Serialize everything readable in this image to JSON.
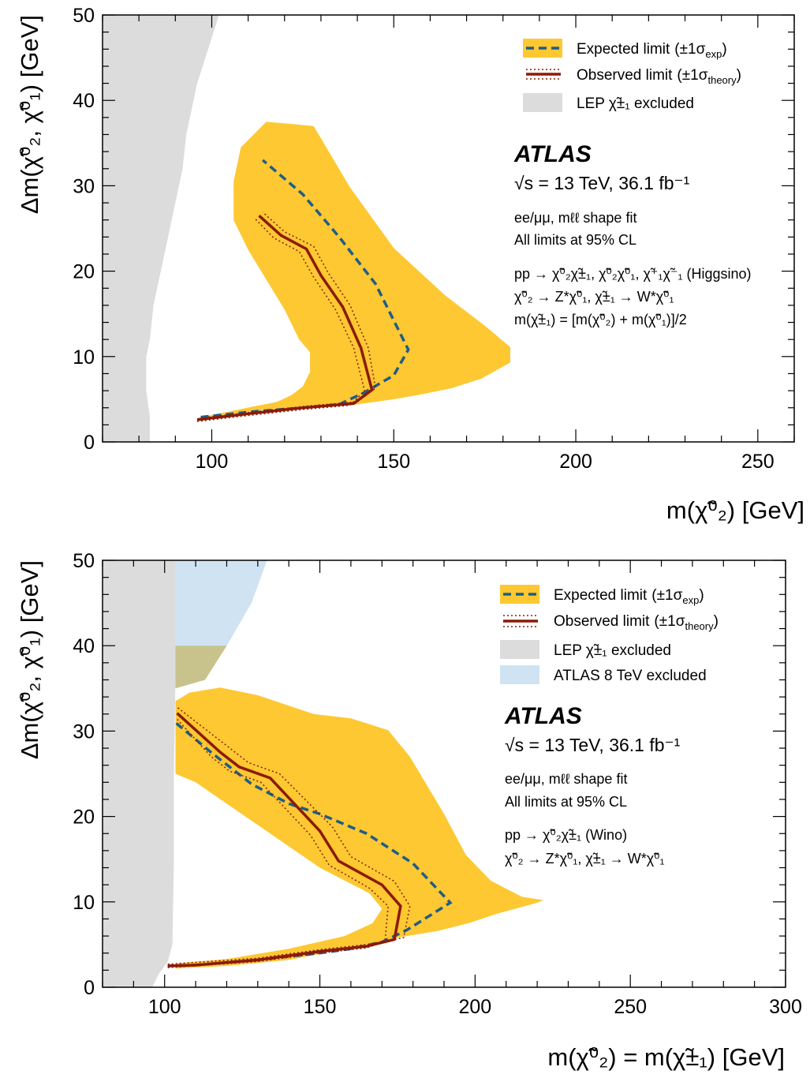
{
  "chart_data": [
    {
      "type": "area",
      "xlabel": "m(χ̃⁰₂) [GeV]",
      "ylabel": "Δm(χ̃⁰₂, χ̃⁰₁) [GeV]",
      "xlim": [
        70,
        260
      ],
      "ylim": [
        0,
        50
      ],
      "xticks": [
        100,
        150,
        200,
        250
      ],
      "yticks": [
        0,
        10,
        20,
        30,
        40,
        50
      ],
      "legend_position": "top-right",
      "legend": [
        "Expected limit (±1σexp)",
        "Observed limit (±1σtheory)",
        "LEP χ̃±₁ excluded"
      ],
      "experiment": "ATLAS",
      "energy": "√s = 13 TeV, 36.1 fb⁻¹",
      "notes": [
        "ee/μμ, mℓℓ shape fit",
        "All limits at 95% CL",
        "pp → χ̃⁰₂χ̃±₁, χ̃⁰₂χ̃⁰₁, χ̃⁺₁χ̃⁻₁ (Higgsino)",
        "χ̃⁰₂ → Z*χ̃⁰₁, χ̃±₁ → W*χ̃⁰₁",
        "m(χ̃±₁) = [m(χ̃⁰₂) + m(χ̃⁰₁)]/2"
      ],
      "lep_excluded": [
        [
          70,
          0
        ],
        [
          70,
          50
        ],
        [
          102,
          50
        ],
        [
          99,
          46
        ],
        [
          96,
          42
        ],
        [
          93,
          36
        ],
        [
          92,
          32
        ],
        [
          90,
          28
        ],
        [
          88,
          24
        ],
        [
          86,
          20
        ],
        [
          84,
          16
        ],
        [
          83,
          12
        ],
        [
          82,
          10
        ],
        [
          82,
          6
        ],
        [
          83,
          3
        ],
        [
          83,
          0
        ]
      ],
      "band_1sigma": [
        [
          96,
          2.5
        ],
        [
          104,
          3.2
        ],
        [
          115,
          3.8
        ],
        [
          128,
          4
        ],
        [
          140,
          4.4
        ],
        [
          150,
          5.0
        ],
        [
          158,
          5.6
        ],
        [
          166,
          6.3
        ],
        [
          174,
          7.4
        ],
        [
          182,
          9.3
        ],
        [
          182,
          11.1
        ],
        [
          175,
          13.6
        ],
        [
          164,
          17.2
        ],
        [
          150,
          22.7
        ],
        [
          138,
          29.8
        ],
        [
          128,
          37
        ],
        [
          115,
          37.5
        ],
        [
          108,
          34.5
        ],
        [
          106,
          30.5
        ],
        [
          106,
          26
        ],
        [
          110,
          22.5
        ],
        [
          120,
          15.5
        ],
        [
          124,
          12
        ],
        [
          127,
          10.5
        ],
        [
          127,
          8.2
        ],
        [
          125,
          6.5
        ],
        [
          122,
          5.5
        ],
        [
          118,
          4.7
        ],
        [
          112,
          4.2
        ],
        [
          104,
          3.5
        ],
        [
          96,
          2.8
        ]
      ],
      "series": [
        {
          "name": "Expected limit (±1σexp)",
          "style": "dashed",
          "points": [
            [
              97,
              2.9
            ],
            [
              110,
              3.5
            ],
            [
              125,
              4
            ],
            [
              135,
              4.4
            ],
            [
              142,
              5.8
            ],
            [
              150,
              7.8
            ],
            [
              154,
              10.8
            ],
            [
              145,
              18.5
            ],
            [
              135,
              24
            ],
            [
              125,
              29
            ],
            [
              114,
              33
            ]
          ]
        },
        {
          "name": "Observed limit (±1σtheory)",
          "style": "solid",
          "points": [
            [
              96,
              2.6
            ],
            [
              110,
              3.3
            ],
            [
              125,
              4
            ],
            [
              139,
              4.5
            ],
            [
              144,
              6.1
            ],
            [
              141,
              11
            ],
            [
              136,
              15.8
            ],
            [
              130,
              19.5
            ],
            [
              126,
              22.6
            ],
            [
              119,
              24.2
            ],
            [
              113,
              26.5
            ]
          ]
        },
        {
          "name": "theory +1σ",
          "style": "dotted",
          "points": [
            [
              96,
              2.4
            ],
            [
              110,
              3.1
            ],
            [
              125,
              3.8
            ],
            [
              138,
              4.3
            ],
            [
              142,
              6
            ],
            [
              139,
              11
            ],
            [
              134,
              15.5
            ],
            [
              128,
              19.3
            ],
            [
              124,
              22.3
            ],
            [
              117,
              23.9
            ],
            [
              112,
              26.1
            ]
          ]
        },
        {
          "name": "theory -1σ",
          "style": "dotted",
          "points": [
            [
              97,
              2.8
            ],
            [
              111,
              3.5
            ],
            [
              126,
              4.2
            ],
            [
              140,
              4.7
            ],
            [
              145,
              6.3
            ],
            [
              143,
              11
            ],
            [
              138,
              16
            ],
            [
              132,
              19.8
            ],
            [
              128,
              22.9
            ],
            [
              120,
              24.6
            ],
            [
              114,
              26.9
            ]
          ]
        }
      ],
      "colors": {
        "band": "#fdc832",
        "expected": "#1f5d86",
        "observed": "#8c1a07",
        "lep": "#dcdcdc"
      }
    },
    {
      "type": "area",
      "xlabel": "m(χ̃⁰₂) = m(χ̃±₁) [GeV]",
      "ylabel": "Δm(χ̃⁰₂, χ̃⁰₁) [GeV]",
      "xlim": [
        80,
        300
      ],
      "ylim": [
        0,
        50
      ],
      "xticks": [
        100,
        150,
        200,
        250,
        300
      ],
      "yticks": [
        0,
        10,
        20,
        30,
        40,
        50
      ],
      "legend_position": "top-right",
      "legend": [
        "Expected limit (±1σexp)",
        "Observed limit (±1σtheory)",
        "LEP χ̃±₁ excluded",
        "ATLAS 8 TeV excluded"
      ],
      "experiment": "ATLAS",
      "energy": "√s = 13 TeV, 36.1 fb⁻¹",
      "notes": [
        "ee/μμ, mℓℓ shape fit",
        "All limits at 95% CL",
        "pp → χ̃⁰₂χ̃±₁ (Wino)",
        "χ̃⁰₂ → Z*χ̃⁰₁, χ̃±₁ → W*χ̃⁰₁"
      ],
      "lep_excluded": [
        [
          80,
          0
        ],
        [
          80,
          50
        ],
        [
          103.5,
          50
        ],
        [
          103.5,
          36
        ],
        [
          103,
          25
        ],
        [
          103,
          15
        ],
        [
          102.5,
          5
        ],
        [
          101,
          3
        ],
        [
          98,
          1.5
        ],
        [
          96,
          0
        ]
      ],
      "atlas8_excluded": [
        [
          103.5,
          50
        ],
        [
          133,
          50
        ],
        [
          128,
          45
        ],
        [
          120,
          40
        ],
        [
          113,
          36
        ],
        [
          103.5,
          35
        ]
      ],
      "band_1sigma": [
        [
          103.5,
          2.2
        ],
        [
          120,
          2.5
        ],
        [
          140,
          3.2
        ],
        [
          160,
          4.6
        ],
        [
          175,
          5.8
        ],
        [
          188,
          6.6
        ],
        [
          198,
          7.5
        ],
        [
          207,
          8.6
        ],
        [
          220,
          9.9
        ],
        [
          222,
          10.2
        ],
        [
          215,
          10.6
        ],
        [
          205,
          12.5
        ],
        [
          197,
          15.5
        ],
        [
          190,
          20.3
        ],
        [
          179,
          27
        ],
        [
          172,
          30.1
        ],
        [
          160,
          31.5
        ],
        [
          148,
          32
        ],
        [
          130,
          34.2
        ],
        [
          118,
          35.1
        ],
        [
          108,
          34.5
        ],
        [
          103.5,
          33.5
        ],
        [
          103.5,
          25
        ],
        [
          110,
          24
        ],
        [
          130,
          19
        ],
        [
          150,
          14
        ],
        [
          166,
          11
        ],
        [
          170,
          9.2
        ],
        [
          167,
          7.5
        ],
        [
          158,
          6
        ],
        [
          140,
          4.5
        ],
        [
          120,
          3.3
        ],
        [
          103.5,
          2.8
        ]
      ],
      "series": [
        {
          "name": "Expected limit (±1σexp)",
          "style": "dashed",
          "points": [
            [
              101,
              2.5
            ],
            [
              110,
              2.6
            ],
            [
              130,
              3.2
            ],
            [
              150,
              4
            ],
            [
              160,
              4.5
            ],
            [
              170,
              5.3
            ],
            [
              178,
              6.7
            ],
            [
              192,
              9.9
            ],
            [
              180,
              14.5
            ],
            [
              165,
              18
            ],
            [
              150,
              20.3
            ],
            [
              140,
              21.5
            ],
            [
              128,
              23.8
            ],
            [
              115,
              27.5
            ],
            [
              103.5,
              31
            ]
          ]
        },
        {
          "name": "Observed limit (±1σtheory)",
          "style": "solid",
          "points": [
            [
              101,
              2.5
            ],
            [
              110,
              2.6
            ],
            [
              130,
              3.2
            ],
            [
              150,
              4.2
            ],
            [
              165,
              4.8
            ],
            [
              174,
              5.6
            ],
            [
              176,
              9.5
            ],
            [
              170,
              12
            ],
            [
              156,
              14.8
            ],
            [
              150,
              18.3
            ],
            [
              134,
              24.5
            ],
            [
              124,
              25.8
            ],
            [
              118,
              27.5
            ],
            [
              104,
              32.1
            ]
          ]
        },
        {
          "name": "theory +1σ",
          "style": "dotted",
          "points": [
            [
              101,
              2.3
            ],
            [
              130,
              3
            ],
            [
              150,
              4
            ],
            [
              165,
              4.6
            ],
            [
              171,
              5.4
            ],
            [
              172,
              9.5
            ],
            [
              166,
              11.6
            ],
            [
              153,
              14.3
            ],
            [
              147,
              17.8
            ],
            [
              131,
              24
            ],
            [
              121,
              25.3
            ],
            [
              115,
              27
            ],
            [
              104,
              31.4
            ]
          ]
        },
        {
          "name": "theory -1σ",
          "style": "dotted",
          "points": [
            [
              101,
              2.7
            ],
            [
              130,
              3.4
            ],
            [
              150,
              4.4
            ],
            [
              165,
              5
            ],
            [
              177,
              5.8
            ],
            [
              179,
              9.5
            ],
            [
              174,
              12.4
            ],
            [
              160,
              15.3
            ],
            [
              154,
              18.8
            ],
            [
              137,
              25
            ],
            [
              127,
              26.3
            ],
            [
              121,
              28
            ],
            [
              104,
              32.8
            ]
          ]
        }
      ],
      "colors": {
        "band": "#fdc832",
        "expected": "#1f5d86",
        "observed": "#8c1a07",
        "lep": "#dcdcdc",
        "atlas8": "#cfe3f2"
      }
    }
  ],
  "plot1": {
    "legend": {
      "expected": "Expected limit",
      "expected_paren": "(±1σ",
      "expected_sub": "exp",
      "observed": "Observed limit",
      "observed_paren": "(±1σ",
      "observed_sub": "theory",
      "lep": "LEP χ̃±₁ excluded"
    },
    "atlas": "ATLAS",
    "energy": "√s = 13 TeV, 36.1 fb⁻¹",
    "line1": "ee/μμ, mℓℓ shape fit",
    "line2": "All limits at 95% CL",
    "line3": "pp → χ̃⁰₂χ̃±₁, χ̃⁰₂χ̃⁰₁, χ̃⁺₁χ̃⁻₁ (Higgsino)",
    "line4": "χ̃⁰₂ → Z*χ̃⁰₁, χ̃±₁ → W*χ̃⁰₁",
    "line5": "m(χ̃±₁) = [m(χ̃⁰₂) + m(χ̃⁰₁)]/2",
    "xlabel": "m(χ̃⁰₂) [GeV]",
    "ylabel": "Δm(χ̃⁰₂, χ̃⁰₁) [GeV]"
  },
  "plot2": {
    "legend": {
      "expected": "Expected limit",
      "expected_paren": "(±1σ",
      "expected_sub": "exp",
      "observed": "Observed limit",
      "observed_paren": "(±1σ",
      "observed_sub": "theory",
      "lep": "LEP χ̃±₁ excluded",
      "atlas8": "ATLAS 8 TeV excluded"
    },
    "atlas": "ATLAS",
    "energy": "√s = 13 TeV, 36.1 fb⁻¹",
    "line1": "ee/μμ, mℓℓ shape fit",
    "line2": "All limits at 95% CL",
    "line3": "pp → χ̃⁰₂χ̃±₁ (Wino)",
    "line4": "χ̃⁰₂ → Z*χ̃⁰₁, χ̃±₁ → W*χ̃⁰₁",
    "xlabel": "m(χ̃⁰₂) = m(χ̃±₁) [GeV]",
    "ylabel": "Δm(χ̃⁰₂, χ̃⁰₁) [GeV]"
  }
}
